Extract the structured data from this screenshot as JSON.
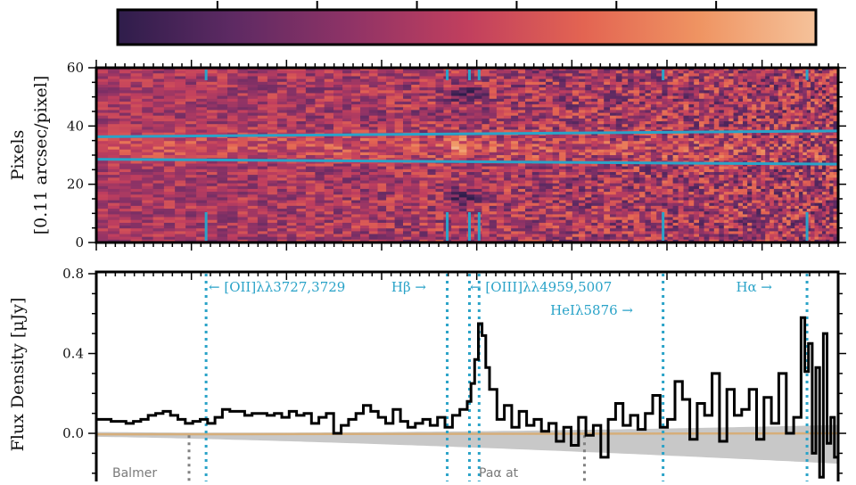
{
  "colors": {
    "cmap": [
      "#2f1d4b",
      "#5e2a63",
      "#8f3366",
      "#c13f5e",
      "#e36452",
      "#ef9462",
      "#f5c29a"
    ],
    "line_marker": "#2aa3c8",
    "spectrum": "#000000",
    "error_band": "#c8c8c8",
    "model": "#d6ae7a",
    "balmer_marker": "#808080"
  },
  "chart_data": [
    {
      "type": "colorbar",
      "ticks": 7,
      "tick_labels": []
    },
    {
      "type": "heatmap",
      "ylabel": "Pixels",
      "ylabel2": "[0.11 arcsec/pixel]",
      "ylim": [
        0,
        60
      ],
      "yticks": [
        "0",
        "20",
        "40",
        "60"
      ],
      "trace_lines": [
        {
          "name": "upper-trace",
          "y_start": 36.3,
          "y_end": 38.3
        },
        {
          "name": "lower-trace",
          "y_start": 28.6,
          "y_end": 26.9
        }
      ],
      "line_markers_x": [
        0.148,
        0.473,
        0.503,
        0.516,
        0.764,
        0.958
      ]
    },
    {
      "type": "line",
      "ylabel": "Flux Density  [μJy]",
      "ylim": [
        -0.25,
        0.8
      ],
      "yticks": [
        "0.8",
        "0.4",
        "0.0"
      ],
      "line_markers_x": [
        0.148,
        0.473,
        0.503,
        0.516,
        0.764,
        0.958
      ],
      "balmer_x": 0.125,
      "paalpha_x": 0.658,
      "annotations": [
        "← [OII]λλ3727,3729",
        "Hβ →",
        "← [OIII]λλ4959,5007",
        "HeIλ5876 →",
        "Hα →",
        "Balmer",
        "Paα at"
      ],
      "series": [
        {
          "x": [
            0.0,
            0.01,
            0.02,
            0.03,
            0.04,
            0.05,
            0.06,
            0.07,
            0.08,
            0.09,
            0.1,
            0.11,
            0.12,
            0.13,
            0.14,
            0.15,
            0.16,
            0.17,
            0.18,
            0.19,
            0.2,
            0.21,
            0.22,
            0.23,
            0.24,
            0.25,
            0.26,
            0.27,
            0.28,
            0.29,
            0.3,
            0.31,
            0.32,
            0.33,
            0.34,
            0.35,
            0.36,
            0.37,
            0.38,
            0.39,
            0.4,
            0.41,
            0.42,
            0.43,
            0.44,
            0.45,
            0.46,
            0.47,
            0.48,
            0.49,
            0.5,
            0.505,
            0.51,
            0.515,
            0.52,
            0.525,
            0.53,
            0.54,
            0.55,
            0.56,
            0.57,
            0.58,
            0.59,
            0.6,
            0.61,
            0.62,
            0.63,
            0.64,
            0.65,
            0.66,
            0.67,
            0.68,
            0.69,
            0.7,
            0.71,
            0.72,
            0.73,
            0.74,
            0.75,
            0.76,
            0.77,
            0.78,
            0.79,
            0.8,
            0.81,
            0.82,
            0.83,
            0.84,
            0.85,
            0.86,
            0.87,
            0.88,
            0.89,
            0.9,
            0.91,
            0.92,
            0.93,
            0.94,
            0.95,
            0.955,
            0.96,
            0.965,
            0.97,
            0.975,
            0.98,
            0.985,
            0.99,
            0.995
          ],
          "y": [
            0.07,
            0.07,
            0.06,
            0.06,
            0.05,
            0.06,
            0.07,
            0.09,
            0.1,
            0.11,
            0.09,
            0.07,
            0.05,
            0.06,
            0.07,
            0.05,
            0.08,
            0.12,
            0.11,
            0.11,
            0.09,
            0.1,
            0.1,
            0.09,
            0.1,
            0.08,
            0.11,
            0.09,
            0.1,
            0.05,
            0.08,
            0.1,
            0.0,
            0.04,
            0.07,
            0.1,
            0.14,
            0.11,
            0.08,
            0.05,
            0.12,
            0.06,
            0.03,
            0.05,
            0.07,
            0.04,
            0.08,
            0.03,
            0.09,
            0.12,
            0.16,
            0.25,
            0.37,
            0.55,
            0.49,
            0.33,
            0.22,
            0.07,
            0.14,
            0.03,
            0.11,
            0.04,
            0.07,
            0.01,
            0.05,
            -0.04,
            0.03,
            -0.06,
            0.08,
            -0.01,
            0.04,
            -0.12,
            0.07,
            0.15,
            0.04,
            0.09,
            0.02,
            0.1,
            0.19,
            0.03,
            0.07,
            0.26,
            0.17,
            -0.03,
            0.15,
            0.09,
            0.3,
            -0.04,
            0.22,
            0.09,
            0.12,
            0.22,
            -0.03,
            0.18,
            0.05,
            0.3,
            0.0,
            0.08,
            0.58,
            0.31,
            0.45,
            -0.1,
            0.33,
            -0.22,
            0.5,
            -0.05,
            0.08,
            -0.12
          ]
        }
      ]
    }
  ]
}
